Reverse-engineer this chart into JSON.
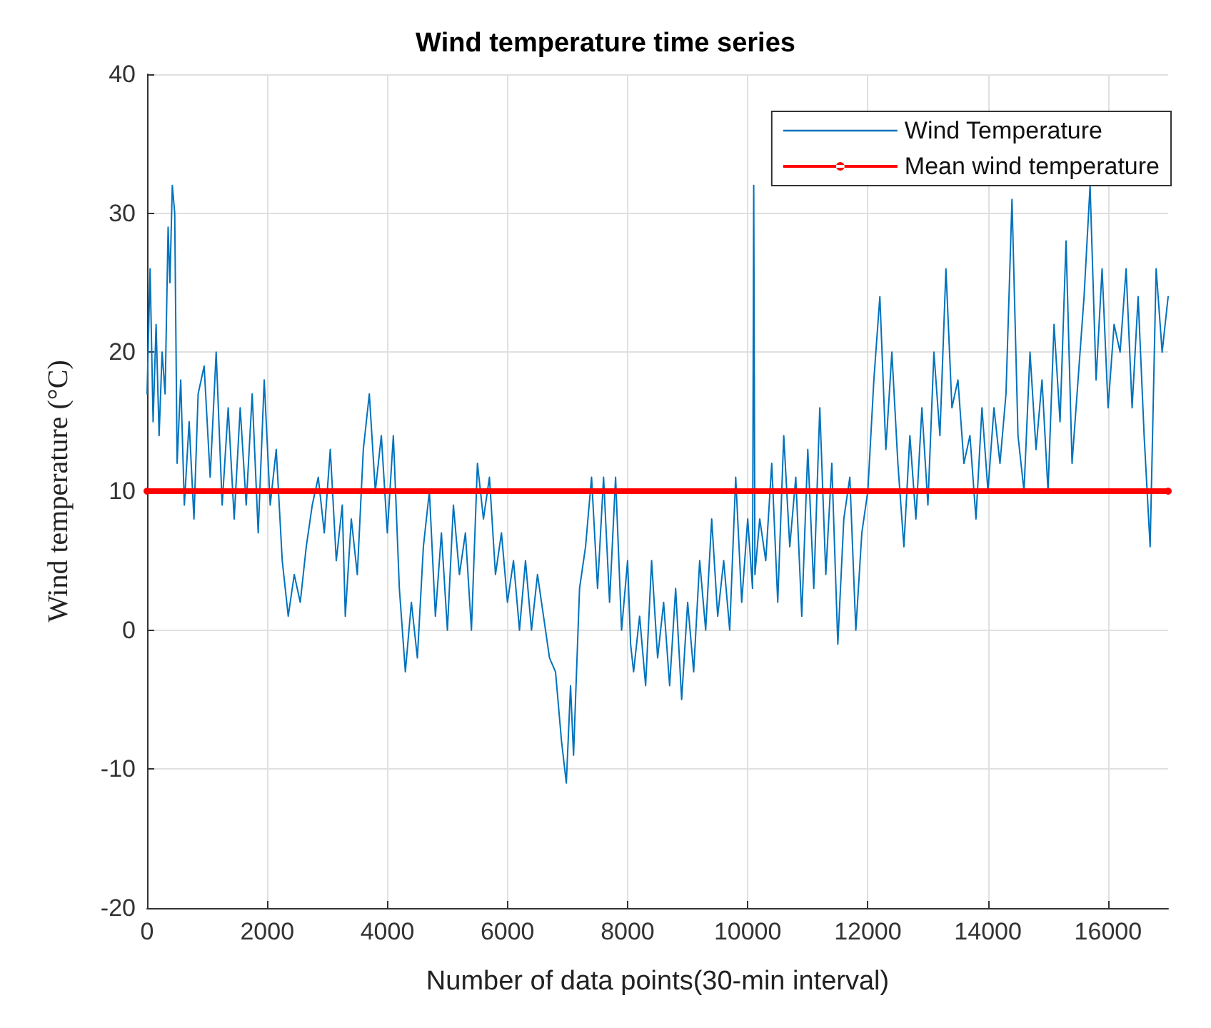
{
  "chart_data": {
    "type": "line",
    "title": "Wind temperature time series",
    "xlabel": "Number of data points(30-min interval)",
    "ylabel": "Wind temperature (°C)",
    "xlim": [
      0,
      17000
    ],
    "xticks": [
      0,
      2000,
      4000,
      6000,
      8000,
      10000,
      12000,
      14000,
      16000
    ],
    "ylim": [
      -20,
      40
    ],
    "yticks": [
      -20,
      -10,
      0,
      10,
      20,
      30,
      40
    ],
    "grid": true,
    "legend": "top right",
    "series": [
      {
        "name": "Wind Temperature",
        "color": "#0072bd",
        "marker": "none",
        "x": [
          0,
          50,
          100,
          150,
          200,
          250,
          300,
          350,
          380,
          420,
          460,
          500,
          560,
          620,
          700,
          780,
          850,
          950,
          1050,
          1150,
          1250,
          1350,
          1450,
          1550,
          1650,
          1750,
          1850,
          1950,
          2050,
          2150,
          2250,
          2350,
          2450,
          2550,
          2650,
          2750,
          2850,
          2950,
          3050,
          3150,
          3250,
          3300,
          3400,
          3500,
          3600,
          3700,
          3800,
          3900,
          4000,
          4100,
          4200,
          4300,
          4400,
          4500,
          4600,
          4700,
          4800,
          4900,
          5000,
          5100,
          5200,
          5300,
          5400,
          5500,
          5600,
          5700,
          5800,
          5900,
          6000,
          6100,
          6200,
          6300,
          6400,
          6500,
          6600,
          6700,
          6800,
          6900,
          6980,
          7050,
          7100,
          7200,
          7300,
          7400,
          7500,
          7600,
          7700,
          7800,
          7900,
          8000,
          8050,
          8100,
          8200,
          8300,
          8400,
          8500,
          8600,
          8700,
          8800,
          8900,
          9000,
          9100,
          9200,
          9300,
          9400,
          9500,
          9600,
          9700,
          9800,
          9900,
          10000,
          10080,
          10100,
          10120,
          10200,
          10300,
          10400,
          10500,
          10600,
          10700,
          10800,
          10900,
          11000,
          11100,
          11200,
          11300,
          11400,
          11500,
          11600,
          11700,
          11800,
          11900,
          12000,
          12100,
          12200,
          12300,
          12400,
          12500,
          12600,
          12700,
          12800,
          12900,
          13000,
          13100,
          13200,
          13300,
          13400,
          13500,
          13600,
          13700,
          13800,
          13900,
          14000,
          14100,
          14200,
          14300,
          14400,
          14500,
          14600,
          14700,
          14800,
          14900,
          15000,
          15100,
          15200,
          15300,
          15400,
          15500,
          15600,
          15700,
          15800,
          15900,
          16000,
          16100,
          16200,
          16300,
          16400,
          16500,
          16600,
          16700,
          16800,
          16900,
          17000
        ],
        "values": [
          17,
          26,
          15,
          22,
          14,
          20,
          17,
          29,
          25,
          32,
          30,
          12,
          18,
          9,
          15,
          8,
          17,
          19,
          11,
          20,
          9,
          16,
          8,
          16,
          9,
          17,
          7,
          18,
          9,
          13,
          5,
          1,
          4,
          2,
          6,
          9,
          11,
          7,
          13,
          5,
          9,
          1,
          8,
          4,
          13,
          17,
          10,
          14,
          7,
          14,
          3,
          -3,
          2,
          -2,
          6,
          10,
          1,
          7,
          0,
          9,
          4,
          7,
          0,
          12,
          8,
          11,
          4,
          7,
          2,
          5,
          0,
          5,
          0,
          4,
          1,
          -2,
          -3,
          -8,
          -11,
          -4,
          -9,
          3,
          6,
          11,
          3,
          11,
          2,
          11,
          0,
          5,
          -1,
          -3,
          1,
          -4,
          5,
          -2,
          2,
          -4,
          3,
          -5,
          2,
          -3,
          5,
          0,
          8,
          1,
          5,
          0,
          11,
          2,
          8,
          3,
          32,
          4,
          8,
          5,
          12,
          2,
          14,
          6,
          11,
          1,
          13,
          3,
          16,
          4,
          12,
          -1,
          8,
          11,
          0,
          7,
          10,
          18,
          24,
          13,
          20,
          12,
          6,
          14,
          8,
          16,
          9,
          20,
          14,
          26,
          16,
          18,
          12,
          14,
          8,
          16,
          10,
          16,
          12,
          17,
          31,
          14,
          10,
          20,
          13,
          18,
          10,
          22,
          15,
          28,
          12,
          18,
          24,
          32,
          18,
          26,
          16,
          22,
          20,
          26,
          16,
          24,
          14,
          6,
          26,
          20,
          24
        ]
      },
      {
        "name": "Mean wind temperature",
        "color": "#ff0000",
        "marker": "circle",
        "x": [
          0,
          17000
        ],
        "values": [
          10,
          10
        ]
      }
    ]
  }
}
